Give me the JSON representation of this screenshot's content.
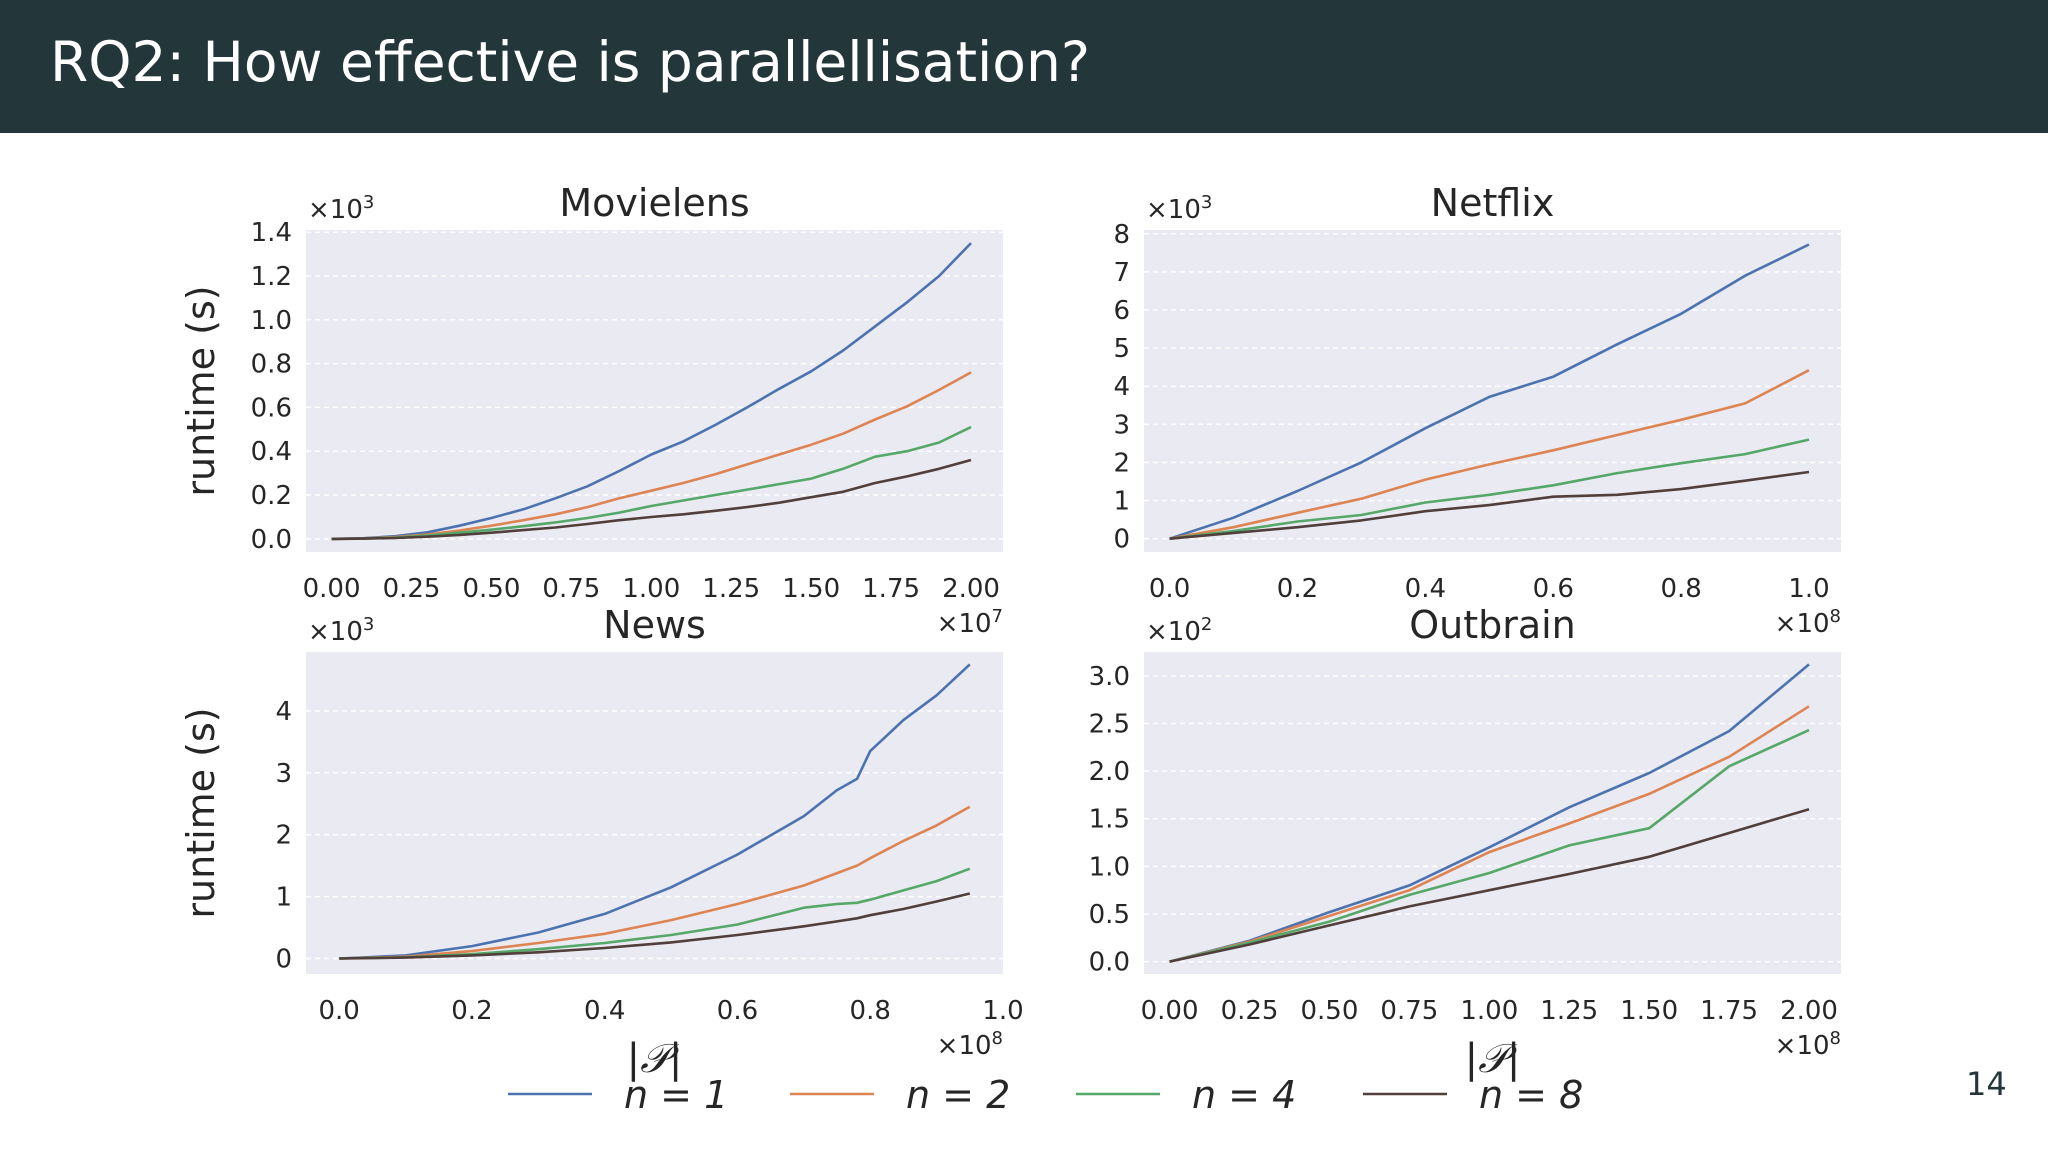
{
  "header": {
    "title": "RQ2: How effective is parallellisation?"
  },
  "page_number": "14",
  "colors": {
    "header_bg": "#23373b",
    "plot_bg": "#eaeaf2",
    "text": "#262626"
  },
  "legend": {
    "placement": "bottom-center",
    "entries": [
      {
        "label": "n = 1",
        "color": "#4c72b0"
      },
      {
        "label": "n = 2",
        "color": "#dd8452"
      },
      {
        "label": "n = 4",
        "color": "#55a868"
      },
      {
        "label": "n = 8",
        "color": "#503f3a"
      }
    ]
  },
  "chart_data": [
    {
      "type": "line",
      "title": "Movielens",
      "ylabel": "runtime (s)",
      "xlabel": "",
      "x_multiplier": "×10^7",
      "y_multiplier": "×10^3",
      "xlim": [
        -0.08,
        2.1
      ],
      "ylim": [
        -0.06,
        1.41
      ],
      "xticks": [
        0,
        0.25,
        0.5,
        0.75,
        1.0,
        1.25,
        1.5,
        1.75,
        2.0
      ],
      "xtick_labels": [
        "0.00",
        "0.25",
        "0.50",
        "0.75",
        "1.00",
        "1.25",
        "1.50",
        "1.75",
        "2.00"
      ],
      "yticks": [
        0,
        0.2,
        0.4,
        0.6,
        0.8,
        1.0,
        1.2,
        1.4
      ],
      "ytick_labels": [
        "0.0",
        "0.2",
        "0.4",
        "0.6",
        "0.8",
        "1.0",
        "1.2",
        "1.4"
      ],
      "grid": true,
      "x": [
        0,
        0.1,
        0.2,
        0.3,
        0.4,
        0.5,
        0.6,
        0.7,
        0.8,
        0.9,
        1.0,
        1.1,
        1.2,
        1.3,
        1.4,
        1.5,
        1.6,
        1.7,
        1.8,
        1.9,
        2.0
      ],
      "series": [
        {
          "name": "n = 1",
          "values": [
            0,
            0.003,
            0.012,
            0.03,
            0.06,
            0.095,
            0.135,
            0.185,
            0.24,
            0.31,
            0.385,
            0.445,
            0.52,
            0.6,
            0.685,
            0.765,
            0.86,
            0.97,
            1.08,
            1.2,
            1.35
          ]
        },
        {
          "name": "n = 2",
          "values": [
            0,
            0.002,
            0.008,
            0.02,
            0.038,
            0.06,
            0.085,
            0.112,
            0.145,
            0.185,
            0.22,
            0.255,
            0.295,
            0.34,
            0.385,
            0.43,
            0.48,
            0.545,
            0.605,
            0.68,
            0.76
          ]
        },
        {
          "name": "n = 4",
          "values": [
            0,
            0.001,
            0.006,
            0.015,
            0.028,
            0.042,
            0.058,
            0.075,
            0.095,
            0.12,
            0.15,
            0.175,
            0.2,
            0.225,
            0.25,
            0.275,
            0.32,
            0.375,
            0.4,
            0.44,
            0.51
          ]
        },
        {
          "name": "n = 8",
          "values": [
            0,
            0.001,
            0.004,
            0.01,
            0.018,
            0.028,
            0.04,
            0.052,
            0.068,
            0.085,
            0.1,
            0.112,
            0.128,
            0.145,
            0.165,
            0.19,
            0.215,
            0.255,
            0.285,
            0.32,
            0.36
          ]
        }
      ]
    },
    {
      "type": "line",
      "title": "Netflix",
      "ylabel": "",
      "xlabel": "",
      "x_multiplier": "×10^8",
      "y_multiplier": "×10^3",
      "xlim": [
        -0.04,
        1.05
      ],
      "ylim": [
        -0.35,
        8.1
      ],
      "xticks": [
        0,
        0.2,
        0.4,
        0.6,
        0.8,
        1.0
      ],
      "xtick_labels": [
        "0.0",
        "0.2",
        "0.4",
        "0.6",
        "0.8",
        "1.0"
      ],
      "yticks": [
        0,
        1,
        2,
        3,
        4,
        5,
        6,
        7,
        8
      ],
      "ytick_labels": [
        "0",
        "1",
        "2",
        "3",
        "4",
        "5",
        "6",
        "7",
        "8"
      ],
      "grid": true,
      "x": [
        0,
        0.1,
        0.2,
        0.3,
        0.4,
        0.5,
        0.6,
        0.7,
        0.8,
        0.9,
        1.0
      ],
      "series": [
        {
          "name": "n = 1",
          "values": [
            0,
            0.55,
            1.25,
            2.0,
            2.9,
            3.72,
            4.25,
            5.1,
            5.9,
            6.9,
            7.72
          ]
        },
        {
          "name": "n = 2",
          "values": [
            0,
            0.3,
            0.68,
            1.05,
            1.55,
            1.95,
            2.32,
            2.72,
            3.12,
            3.55,
            4.42
          ]
        },
        {
          "name": "n = 4",
          "values": [
            0,
            0.2,
            0.45,
            0.62,
            0.95,
            1.15,
            1.4,
            1.72,
            1.98,
            2.22,
            2.6
          ]
        },
        {
          "name": "n = 8",
          "values": [
            0,
            0.15,
            0.3,
            0.48,
            0.72,
            0.88,
            1.1,
            1.15,
            1.3,
            1.52,
            1.75
          ]
        }
      ]
    },
    {
      "type": "line",
      "title": "News",
      "ylabel": "runtime (s)",
      "xlabel": "|𝒫|",
      "x_multiplier": "×10^8",
      "y_multiplier": "×10^3",
      "xlim": [
        -0.05,
        1.0
      ],
      "ylim": [
        -0.25,
        4.95
      ],
      "xticks": [
        0,
        0.2,
        0.4,
        0.6,
        0.8,
        1.0
      ],
      "xtick_labels": [
        "0.0",
        "0.2",
        "0.4",
        "0.6",
        "0.8",
        "1.0"
      ],
      "yticks": [
        0,
        1,
        2,
        3,
        4
      ],
      "ytick_labels": [
        "0",
        "1",
        "2",
        "3",
        "4"
      ],
      "grid": true,
      "x": [
        0,
        0.1,
        0.2,
        0.3,
        0.4,
        0.5,
        0.6,
        0.7,
        0.75,
        0.78,
        0.8,
        0.85,
        0.9,
        0.95
      ],
      "series": [
        {
          "name": "n = 1",
          "values": [
            0,
            0.05,
            0.2,
            0.42,
            0.72,
            1.15,
            1.68,
            2.3,
            2.72,
            2.9,
            3.35,
            3.85,
            4.25,
            4.75
          ]
        },
        {
          "name": "n = 2",
          "values": [
            0,
            0.03,
            0.12,
            0.25,
            0.4,
            0.62,
            0.88,
            1.18,
            1.38,
            1.5,
            1.62,
            1.9,
            2.15,
            2.45
          ]
        },
        {
          "name": "n = 4",
          "values": [
            0,
            0.02,
            0.07,
            0.15,
            0.25,
            0.38,
            0.55,
            0.82,
            0.88,
            0.9,
            0.95,
            1.1,
            1.25,
            1.45
          ]
        },
        {
          "name": "n = 8",
          "values": [
            0,
            0.015,
            0.05,
            0.1,
            0.17,
            0.26,
            0.38,
            0.52,
            0.6,
            0.65,
            0.7,
            0.8,
            0.92,
            1.05
          ]
        }
      ]
    },
    {
      "type": "line",
      "title": "Outbrain",
      "ylabel": "",
      "xlabel": "|𝒫|",
      "x_multiplier": "×10^8",
      "y_multiplier": "×10^2",
      "xlim": [
        -0.08,
        2.1
      ],
      "ylim": [
        -0.13,
        3.25
      ],
      "xticks": [
        0,
        0.25,
        0.5,
        0.75,
        1.0,
        1.25,
        1.5,
        1.75,
        2.0
      ],
      "xtick_labels": [
        "0.00",
        "0.25",
        "0.50",
        "0.75",
        "1.00",
        "1.25",
        "1.50",
        "1.75",
        "2.00"
      ],
      "yticks": [
        0,
        0.5,
        1.0,
        1.5,
        2.0,
        2.5,
        3.0
      ],
      "ytick_labels": [
        "0.0",
        "0.5",
        "1.0",
        "1.5",
        "2.0",
        "2.5",
        "3.0"
      ],
      "grid": true,
      "x": [
        0,
        0.25,
        0.5,
        0.75,
        1.0,
        1.25,
        1.5,
        1.75,
        2.0
      ],
      "series": [
        {
          "name": "n = 1",
          "values": [
            0,
            0.22,
            0.52,
            0.8,
            1.2,
            1.62,
            1.98,
            2.42,
            3.12
          ]
        },
        {
          "name": "n = 2",
          "values": [
            0,
            0.21,
            0.48,
            0.75,
            1.15,
            1.45,
            1.76,
            2.15,
            2.68
          ]
        },
        {
          "name": "n = 4",
          "values": [
            0,
            0.2,
            0.42,
            0.7,
            0.93,
            1.22,
            1.4,
            2.05,
            2.43
          ]
        },
        {
          "name": "n = 8",
          "values": [
            0,
            0.18,
            0.38,
            0.58,
            0.75,
            0.92,
            1.1,
            1.35,
            1.6
          ]
        }
      ]
    }
  ]
}
